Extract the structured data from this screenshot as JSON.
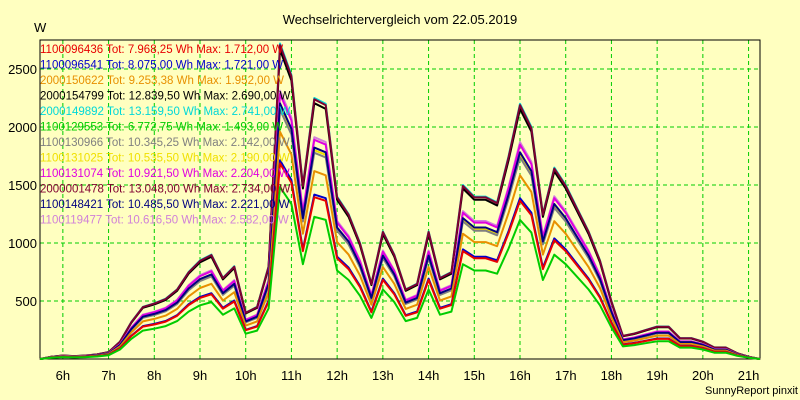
{
  "chart_data": {
    "type": "line",
    "title": "Wechselrichtervergleich vom 22.05.2019",
    "ylabel": "W",
    "xlabel": "",
    "footer": "SunnyReport pinxit",
    "ylim": [
      0,
      2750
    ],
    "yticks": [
      500,
      1000,
      1500,
      2000,
      2500
    ],
    "xlim": [
      5.5,
      21.25
    ],
    "xticks": [
      {
        "v": 6,
        "label": "6h"
      },
      {
        "v": 7,
        "label": "7h"
      },
      {
        "v": 8,
        "label": "8h"
      },
      {
        "v": 9,
        "label": "9h"
      },
      {
        "v": 10,
        "label": "10h"
      },
      {
        "v": 11,
        "label": "11h"
      },
      {
        "v": 12,
        "label": "12h"
      },
      {
        "v": 13,
        "label": "13h"
      },
      {
        "v": 14,
        "label": "14h"
      },
      {
        "v": 15,
        "label": "15h"
      },
      {
        "v": 16,
        "label": "16h"
      },
      {
        "v": 17,
        "label": "17h"
      },
      {
        "v": 18,
        "label": "18h"
      },
      {
        "v": 19,
        "label": "19h"
      },
      {
        "v": 20,
        "label": "20h"
      },
      {
        "v": 21,
        "label": "21h"
      }
    ],
    "grid": true,
    "legend_position": "top-left",
    "x": [
      5.5,
      5.75,
      6,
      6.25,
      6.5,
      6.75,
      7,
      7.25,
      7.5,
      7.75,
      8,
      8.25,
      8.5,
      8.75,
      9,
      9.25,
      9.5,
      9.75,
      10,
      10.25,
      10.5,
      10.75,
      11,
      11.25,
      11.5,
      11.75,
      12,
      12.25,
      12.5,
      12.75,
      13,
      13.25,
      13.5,
      13.75,
      14,
      14.25,
      14.5,
      14.75,
      15,
      15.25,
      15.5,
      15.75,
      16,
      16.25,
      16.5,
      16.75,
      17,
      17.25,
      17.5,
      17.75,
      18,
      18.25,
      18.5,
      18.75,
      19,
      19.25,
      19.5,
      19.75,
      20,
      20.25,
      20.5,
      20.75,
      21,
      21.25
    ],
    "series": [
      {
        "name": "1100096436",
        "legend": "1100096436 Tot: 7.968,25 Wh Max: 1.712,00 W",
        "color": "#e80000",
        "scale": 0.62
      },
      {
        "name": "1100096541",
        "legend": "1100096541 Tot: 8.075,00 Wh Max: 1.721,00 W",
        "color": "#0000cc",
        "scale": 0.63
      },
      {
        "name": "2000150622",
        "legend": "2000150622 Tot: 9.253,38 Wh Max: 1.952,00 W",
        "color": "#e89000",
        "scale": 0.72
      },
      {
        "name": "2000154799",
        "legend": "2000154799 Tot: 12.839,50 Wh Max: 2.690,00 W",
        "color": "#000000",
        "scale": 0.98
      },
      {
        "name": "2000149892",
        "legend": "2000149892 Tot: 13.159,50 Wh Max: 2.741,00 W",
        "color": "#00d8d8",
        "scale": 1.0
      },
      {
        "name": "1100129553",
        "legend": "1100129553 Tot: 6.772,75 Wh Max: 1.493,00 W",
        "color": "#00cc00",
        "scale": 0.545
      },
      {
        "name": "1100130966",
        "legend": "1100130966 Tot: 10.345,25 Wh Max: 2.142,00 W",
        "color": "#808080",
        "scale": 0.79
      },
      {
        "name": "1100131025",
        "legend": "1100131025 Tot: 10.535,50 Wh Max: 2.190,00 W",
        "color": "#f0e000",
        "scale": 0.8
      },
      {
        "name": "1100131074",
        "legend": "1100131074 Tot: 10.921,50 Wh Max: 2.204,00 W",
        "color": "#e000e0",
        "scale": 0.84
      },
      {
        "name": "2000001478",
        "legend": "2000001478 Tot: 13.048,00 Wh Max: 2.734,00 W",
        "color": "#800030",
        "scale": 0.995
      },
      {
        "name": "1100148421",
        "legend": "1100148421 Tot: 10.485,50 Wh Max: 2.221,00 W",
        "color": "#000080",
        "scale": 0.81
      },
      {
        "name": "1100119477",
        "legend": "1100119477 Tot: 10.616,50 Wh Max: 2.582,00 W",
        "color": "#d080d8",
        "scale": 0.85
      }
    ],
    "base_profile": [
      0,
      20,
      30,
      25,
      30,
      40,
      60,
      150,
      320,
      450,
      480,
      520,
      600,
      750,
      850,
      900,
      700,
      800,
      400,
      450,
      800,
      2720,
      2450,
      1500,
      2250,
      2200,
      1400,
      1250,
      1000,
      650,
      1100,
      900,
      600,
      650,
      1100,
      700,
      750,
      1500,
      1400,
      1400,
      1350,
      1750,
      2200,
      2000,
      1250,
      1650,
      1500,
      1300,
      1100,
      850,
      500,
      200,
      220,
      250,
      280,
      280,
      180,
      180,
      150,
      100,
      100,
      50,
      20,
      0
    ]
  }
}
